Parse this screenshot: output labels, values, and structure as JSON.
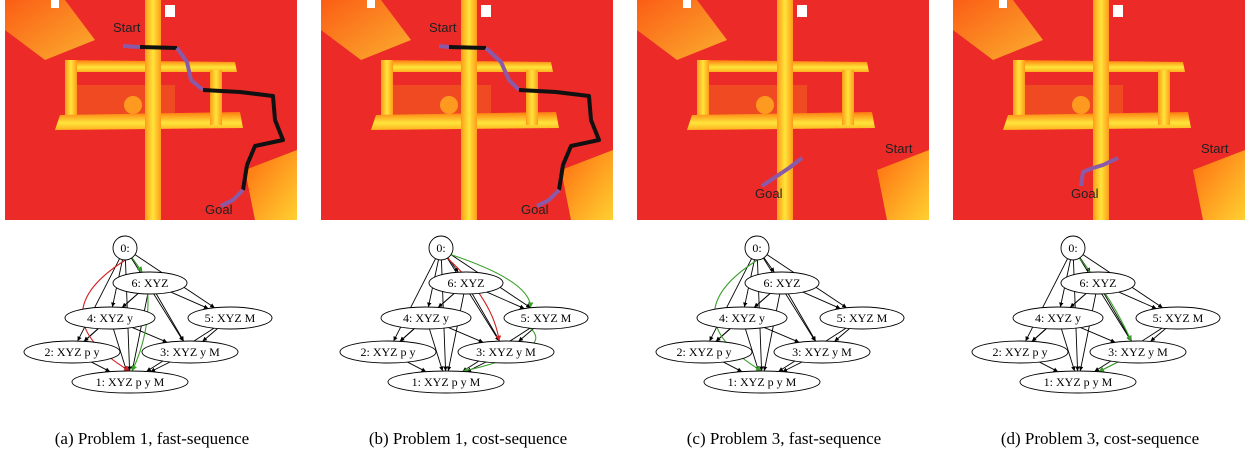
{
  "panels": [
    {
      "map": {
        "start": "Start",
        "goal": "Goal"
      },
      "graph": {
        "nodes": [
          "0:",
          "6: XYZ",
          "4: XYZ y",
          "5: XYZ M",
          "2: XYZ p y",
          "3: XYZ y M",
          "1: XYZ p y M"
        ]
      },
      "caption": "(a) Problem 1, fast-sequence"
    },
    {
      "map": {
        "start": "Start",
        "goal": "Goal"
      },
      "graph": {
        "nodes": [
          "0:",
          "6: XYZ",
          "4: XYZ y",
          "5: XYZ M",
          "2: XYZ p y",
          "3: XYZ y M",
          "1: XYZ p y M"
        ]
      },
      "caption": "(b) Problem 1, cost-sequence"
    },
    {
      "map": {
        "start": "Start",
        "goal": "Goal"
      },
      "graph": {
        "nodes": [
          "0:",
          "6: XYZ",
          "4: XYZ y",
          "5: XYZ M",
          "2: XYZ p y",
          "3: XYZ y M",
          "1: XYZ p y M"
        ]
      },
      "caption": "(c) Problem 3, fast-sequence"
    },
    {
      "map": {
        "start": "Start",
        "goal": "Goal"
      },
      "graph": {
        "nodes": [
          "0:",
          "6: XYZ",
          "4: XYZ y",
          "5: XYZ M",
          "2: XYZ p y",
          "3: XYZ y M",
          "1: XYZ p y M"
        ]
      },
      "caption": "(d) Problem 3, cost-sequence"
    }
  ]
}
